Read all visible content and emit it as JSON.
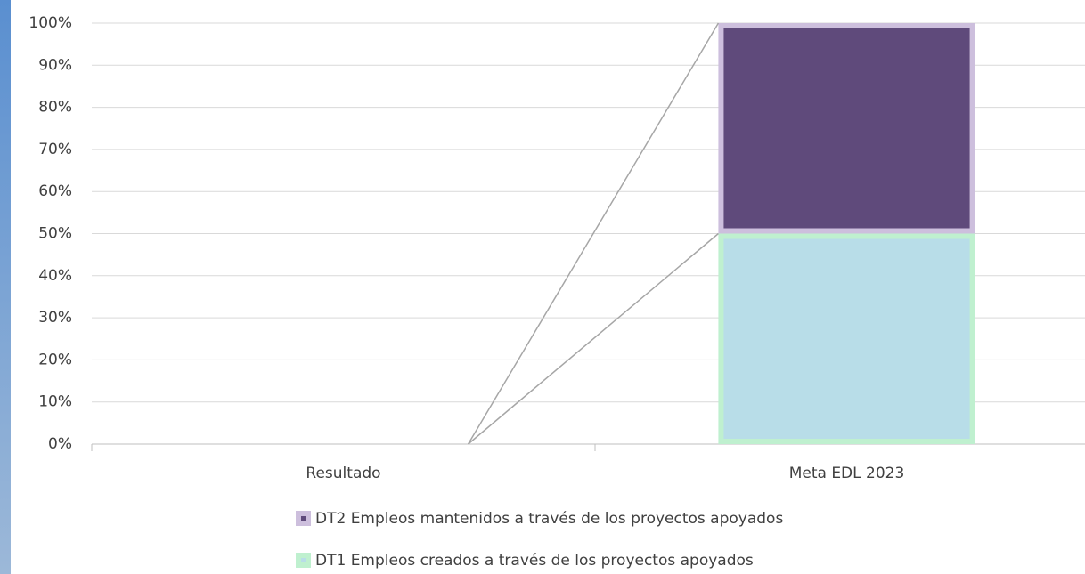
{
  "chart_data": {
    "type": "bar",
    "stacked": true,
    "categories": [
      "Resultado",
      "Meta EDL 2023"
    ],
    "series": [
      {
        "name": "DT1 Empleos creados a través de los proyectos apoyados",
        "color": "#b8dde8",
        "border": "#bff0cf",
        "values": [
          0,
          50
        ]
      },
      {
        "name": "DT2 Empleos mantenidos a través de los proyectos apoyados",
        "color": "#5f4a7b",
        "border": "#cdbfdd",
        "values": [
          0,
          50
        ]
      }
    ],
    "ylim": [
      0,
      100
    ],
    "yticks": [
      {
        "value": 0,
        "label": "0%"
      },
      {
        "value": 10,
        "label": "10%"
      },
      {
        "value": 20,
        "label": "20%"
      },
      {
        "value": 30,
        "label": "30%"
      },
      {
        "value": 40,
        "label": "40%"
      },
      {
        "value": 50,
        "label": "50%"
      },
      {
        "value": 60,
        "label": "60%"
      },
      {
        "value": 70,
        "label": "70%"
      },
      {
        "value": 80,
        "label": "80%"
      },
      {
        "value": 90,
        "label": "90%"
      },
      {
        "value": 100,
        "label": "100%"
      }
    ],
    "grid": true,
    "series_lines": true,
    "legend": "bottom"
  }
}
